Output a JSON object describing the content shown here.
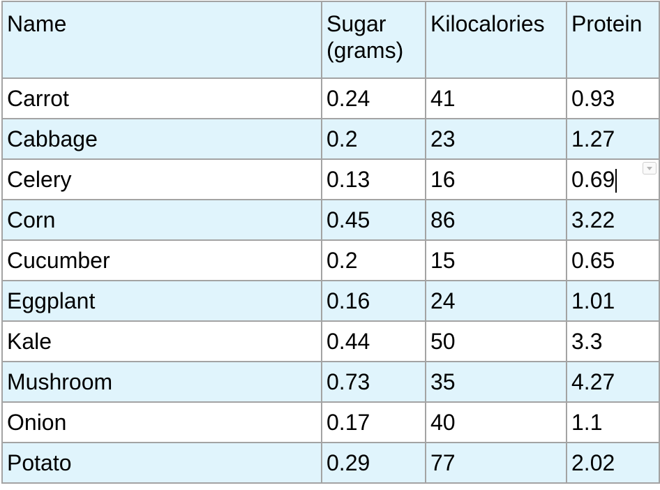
{
  "table": {
    "headers": [
      "Name",
      "Sugar (grams)",
      "Kilocalories",
      "Protein"
    ],
    "rows": [
      {
        "name": "Carrot",
        "sugar": "0.24",
        "kcal": "41",
        "protein": "0.93"
      },
      {
        "name": "Cabbage",
        "sugar": "0.2",
        "kcal": "23",
        "protein": "1.27"
      },
      {
        "name": "Celery",
        "sugar": "0.13",
        "kcal": "16",
        "protein": "0.69"
      },
      {
        "name": "Corn",
        "sugar": "0.45",
        "kcal": "86",
        "protein": "3.22"
      },
      {
        "name": "Cucumber",
        "sugar": "0.2",
        "kcal": "15",
        "protein": "0.65"
      },
      {
        "name": "Eggplant",
        "sugar": "0.16",
        "kcal": "24",
        "protein": "1.01"
      },
      {
        "name": "Kale",
        "sugar": "0.44",
        "kcal": "50",
        "protein": "3.3"
      },
      {
        "name": "Mushroom",
        "sugar": "0.73",
        "kcal": "35",
        "protein": "4.27"
      },
      {
        "name": "Onion",
        "sugar": "0.17",
        "kcal": "40",
        "protein": "1.1"
      },
      {
        "name": "Potato",
        "sugar": "0.29",
        "kcal": "77",
        "protein": "2.02"
      }
    ]
  },
  "editing_cell": {
    "row": "Celery",
    "column": "Protein",
    "value": "0.69"
  },
  "icons": {
    "cell_dropdown": "chevron-down-icon"
  },
  "colors": {
    "header_bg": "#e0f4fc",
    "shaded_row_bg": "#e0f4fc",
    "border": "#a3a3a3"
  }
}
